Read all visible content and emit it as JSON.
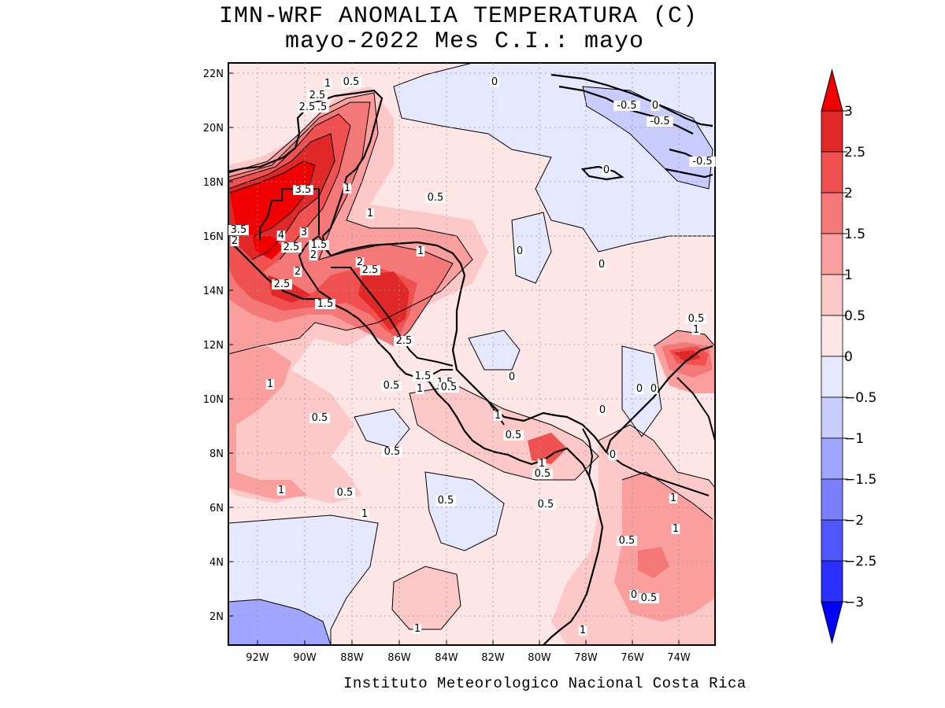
{
  "title_line1": "IMN-WRF  ANOMALIA TEMPERATURA (C)",
  "title_line2": "mayo-2022 Mes C.I.: mayo",
  "footer": "Instituto Meteorologico Nacional Costa Rica",
  "map": {
    "lat_ticks": [
      "2N",
      "4N",
      "6N",
      "8N",
      "10N",
      "12N",
      "14N",
      "16N",
      "18N",
      "20N",
      "22N"
    ],
    "lon_ticks": [
      "92W",
      "90W",
      "88W",
      "86W",
      "84W",
      "82W",
      "80W",
      "78W",
      "76W",
      "74W"
    ],
    "contour_labels": [
      "0.5",
      "1",
      "2.5",
      "1.5",
      "2.5",
      "0",
      "-0.5",
      "0",
      "-0.5",
      "0",
      "-0.5",
      "1",
      "3.5",
      "0.5",
      "1",
      "3.5",
      "2",
      "4",
      "3",
      "2.5",
      "1.5",
      "2",
      "0",
      "1",
      "2",
      "2.5",
      "0",
      "2",
      "2.5",
      "1.5",
      "0.5",
      "1",
      "2.5",
      "0",
      "1",
      "0.5",
      "1.5",
      "1",
      "1.5",
      "0.5",
      "0",
      "0",
      "0.5",
      "1",
      "0.5",
      "0",
      "0.5",
      "0",
      "1",
      "0.5",
      "1",
      "0.5",
      "1",
      "1",
      "0.5",
      "0.5",
      "1",
      "0.5",
      "0",
      "0.5",
      "1",
      "1",
      "0.5"
    ]
  },
  "colorbar": {
    "labels": [
      "3",
      "2.5",
      "2",
      "1.5",
      "1",
      "0.5",
      "0",
      "-0.5",
      "-1",
      "-1.5",
      "-2",
      "-2.5",
      "-3"
    ],
    "colors": [
      "#f00000",
      "#e02828",
      "#f05050",
      "#f57878",
      "#fa9e9e",
      "#fcc8c8",
      "#fee6e6",
      "#e6e8ff",
      "#c8ccff",
      "#a0a6ff",
      "#7a80ff",
      "#5056ff",
      "#2a30ff",
      "#0000ff"
    ]
  }
}
